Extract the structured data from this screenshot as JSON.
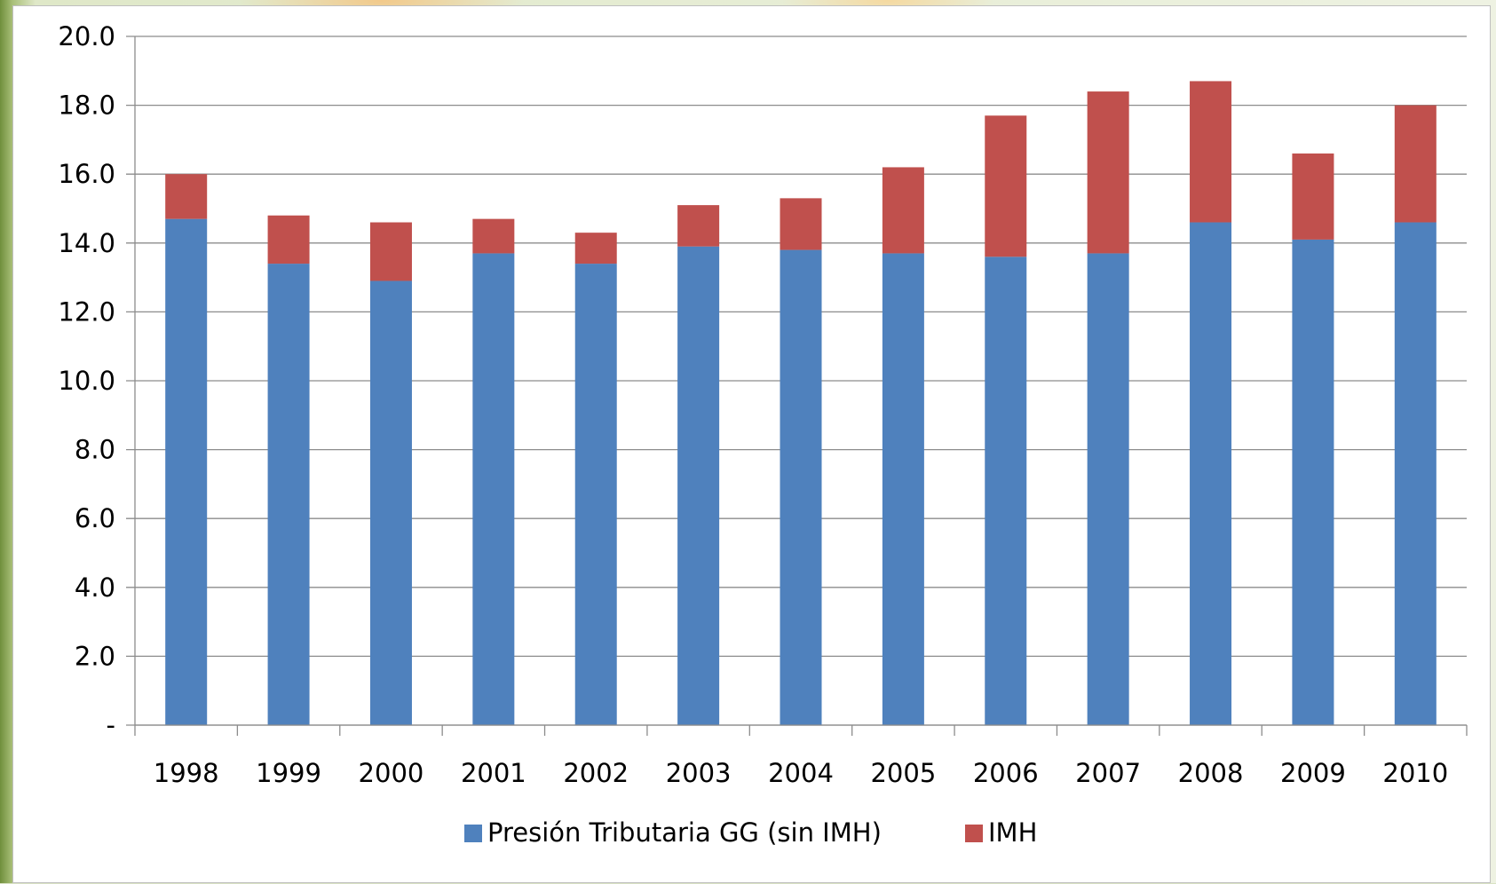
{
  "chart_data": {
    "type": "bar",
    "stacked": true,
    "categories": [
      "1998",
      "1999",
      "2000",
      "2001",
      "2002",
      "2003",
      "2004",
      "2005",
      "2006",
      "2007",
      "2008",
      "2009",
      "2010"
    ],
    "series": [
      {
        "name": "Presión Tributaria GG (sin IMH)",
        "color": "#4f81bd",
        "values": [
          14.7,
          13.4,
          12.9,
          13.7,
          13.4,
          13.9,
          13.8,
          13.7,
          13.6,
          13.7,
          14.6,
          14.1,
          14.6
        ]
      },
      {
        "name": "IMH",
        "color": "#c0504d",
        "values": [
          1.3,
          1.4,
          1.7,
          1.0,
          0.9,
          1.2,
          1.5,
          2.5,
          4.1,
          4.7,
          4.1,
          2.5,
          3.4
        ]
      }
    ],
    "ylim": [
      0,
      20
    ],
    "yticks": [
      "-",
      "2.0",
      "4.0",
      "6.0",
      "8.0",
      "10.0",
      "12.0",
      "14.0",
      "16.0",
      "18.0",
      "20.0"
    ],
    "grid": true,
    "legend": "bottom",
    "title": "",
    "xlabel": "",
    "ylabel": ""
  }
}
